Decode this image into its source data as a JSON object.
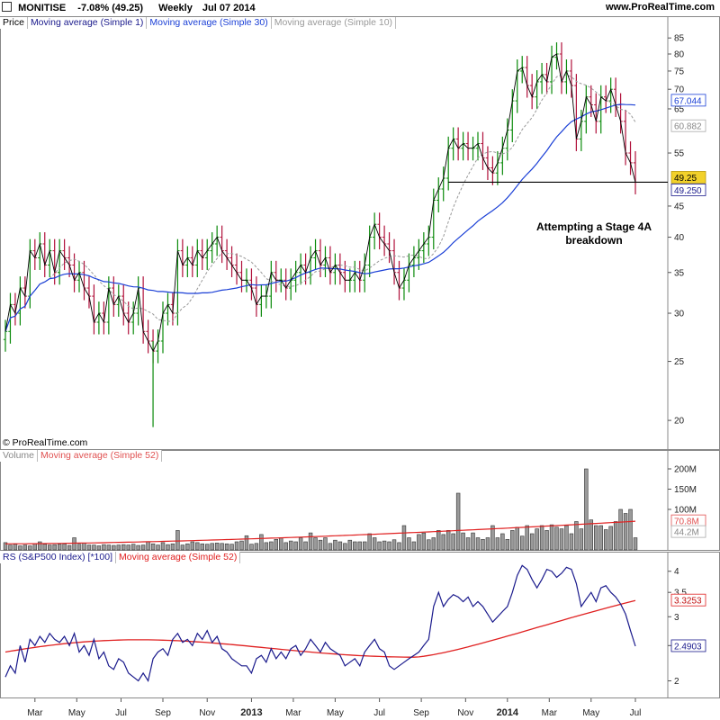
{
  "header": {
    "symbol": "MONITISE",
    "change": "-7.08% (49.25)",
    "period": "Weekly",
    "date": "Jul 07 2014",
    "site": "www.ProRealTime.com"
  },
  "copyright": "© ProRealTime.com",
  "annotation": {
    "line1": "Attempting a Stage 4A",
    "line2": "breakdown"
  },
  "colors": {
    "up": "#0a8a0a",
    "down": "#b0103a",
    "ma_price_1": "#000000",
    "ma_30": "#1a3fd6",
    "ma_10": "#999999",
    "volume_bar": "#9a9a9a",
    "ma52": "#e02020",
    "rs": "#1a1a8c",
    "tag_current_bg": "#f2d12a"
  },
  "chart_data": [
    {
      "type": "candlestick",
      "panel": "price",
      "legend": [
        "Price",
        "Moving average (Simple 1)",
        "Moving average (Simple 30)",
        "Moving average (Simple 10)"
      ],
      "y_scale": "log",
      "ylim": [
        18.5,
        88
      ],
      "yticks": [
        20,
        25,
        30,
        35,
        40,
        45,
        55,
        65,
        70,
        75,
        80,
        85
      ],
      "x_ticks": [
        {
          "label": "Mar",
          "week": 6,
          "bold": false
        },
        {
          "label": "May",
          "week": 14.5,
          "bold": false
        },
        {
          "label": "Jul",
          "week": 23.5,
          "bold": false
        },
        {
          "label": "Sep",
          "week": 32,
          "bold": false
        },
        {
          "label": "Nov",
          "week": 41,
          "bold": false
        },
        {
          "label": "2013",
          "week": 50,
          "bold": true
        },
        {
          "label": "Mar",
          "week": 58.5,
          "bold": false
        },
        {
          "label": "May",
          "week": 67,
          "bold": false
        },
        {
          "label": "Jul",
          "week": 76,
          "bold": false
        },
        {
          "label": "Sep",
          "week": 84.5,
          "bold": false
        },
        {
          "label": "Nov",
          "week": 93.5,
          "bold": false
        },
        {
          "label": "2014",
          "week": 102,
          "bold": true
        },
        {
          "label": "Mar",
          "week": 110.5,
          "bold": false
        },
        {
          "label": "May",
          "week": 119,
          "bold": false
        },
        {
          "label": "Jul",
          "week": 128,
          "bold": false
        }
      ],
      "close": [
        28,
        31,
        30,
        33,
        32,
        38,
        37,
        39,
        36,
        38,
        35,
        38,
        37,
        36,
        34,
        35,
        33,
        32,
        29,
        30,
        29,
        33,
        31,
        32,
        30,
        29,
        30,
        33,
        28,
        27,
        26,
        27,
        30,
        31,
        30,
        38,
        36,
        37,
        36,
        38,
        37,
        38,
        39,
        40,
        38,
        37,
        36,
        35,
        34,
        34,
        33,
        31,
        32,
        32,
        35,
        34,
        34,
        33,
        34,
        35,
        36,
        35,
        37,
        38,
        36,
        37,
        35,
        36,
        35,
        34,
        34,
        35,
        34,
        36,
        40,
        42,
        40,
        39,
        38,
        35,
        33,
        34,
        36,
        37,
        38,
        39,
        40,
        46,
        48,
        50,
        56,
        58,
        56,
        57,
        56,
        56,
        57,
        54,
        52,
        51,
        53,
        56,
        60,
        67,
        75,
        76,
        71,
        68,
        72,
        74,
        72,
        79,
        80,
        72,
        75,
        71,
        58,
        62,
        68,
        66,
        62,
        68,
        67,
        70,
        66,
        62,
        55,
        53,
        49.25
      ],
      "threshold_line": {
        "value": 49.25,
        "from_week": 90,
        "to_week": 129
      },
      "last_price_tags": [
        {
          "text": "67.044",
          "value": 67.044,
          "series": "ma_30"
        },
        {
          "text": "60.882",
          "value": 60.882,
          "series": "ma_10"
        },
        {
          "text": "49.25",
          "value": 49.25,
          "series": "price"
        },
        {
          "text": "49.250",
          "value": 49.25,
          "series": "ma_1"
        }
      ]
    },
    {
      "type": "bar",
      "panel": "volume",
      "legend": [
        "Volume",
        "Moving average (Simple 52)"
      ],
      "ylim": [
        0,
        240
      ],
      "unit": "M",
      "yticks": [
        {
          "value": 100,
          "label": "100M"
        },
        {
          "value": 150,
          "label": "150M"
        },
        {
          "value": 200,
          "label": "200M"
        }
      ],
      "values": [
        18,
        12,
        14,
        10,
        12,
        10,
        16,
        20,
        14,
        12,
        13,
        14,
        15,
        11,
        30,
        14,
        17,
        12,
        12,
        10,
        13,
        12,
        11,
        12,
        13,
        12,
        14,
        11,
        12,
        20,
        15,
        12,
        18,
        13,
        15,
        48,
        12,
        15,
        20,
        18,
        15,
        14,
        16,
        17,
        16,
        15,
        14,
        20,
        22,
        35,
        14,
        16,
        38,
        18,
        20,
        26,
        30,
        18,
        22,
        20,
        30,
        20,
        42,
        30,
        24,
        30,
        16,
        24,
        20,
        16,
        24,
        20,
        20,
        20,
        40,
        30,
        20,
        22,
        20,
        25,
        18,
        60,
        30,
        20,
        38,
        42,
        25,
        30,
        48,
        38,
        48,
        40,
        140,
        42,
        30,
        42,
        30,
        26,
        30,
        60,
        30,
        40,
        26,
        48,
        56,
        34,
        60,
        40,
        52,
        60,
        48,
        62,
        56,
        52,
        60,
        40,
        70,
        52,
        200,
        74,
        60,
        60,
        50,
        58,
        70,
        100,
        90,
        100,
        30
      ],
      "ma52_start": 15,
      "ma52_end": 70.8,
      "last_tags": [
        {
          "text": "70.8M",
          "value": 70.8
        },
        {
          "text": "44.2M",
          "value": 44.2
        }
      ]
    },
    {
      "type": "line",
      "panel": "rs",
      "legend": [
        "RS (S&P500 Index) [*100]",
        "Moving average (Simple 52)"
      ],
      "y_scale": "log",
      "ylim": [
        1.8,
        4.4
      ],
      "yticks": [
        2,
        2.5,
        3,
        3.5,
        4
      ],
      "values": [
        2.05,
        2.2,
        2.1,
        2.5,
        2.25,
        2.6,
        2.5,
        2.65,
        2.55,
        2.7,
        2.6,
        2.55,
        2.65,
        2.5,
        2.7,
        2.4,
        2.5,
        2.35,
        2.6,
        2.3,
        2.4,
        2.2,
        2.15,
        2.3,
        2.25,
        2.1,
        2.05,
        2.0,
        2.1,
        2.0,
        2.3,
        2.4,
        2.45,
        2.35,
        2.6,
        2.7,
        2.55,
        2.6,
        2.5,
        2.7,
        2.6,
        2.75,
        2.55,
        2.65,
        2.45,
        2.4,
        2.3,
        2.25,
        2.2,
        2.2,
        2.1,
        2.3,
        2.35,
        2.25,
        2.45,
        2.3,
        2.4,
        2.3,
        2.45,
        2.5,
        2.35,
        2.45,
        2.6,
        2.5,
        2.4,
        2.55,
        2.45,
        2.4,
        2.35,
        2.2,
        2.25,
        2.3,
        2.2,
        2.4,
        2.5,
        2.6,
        2.45,
        2.4,
        2.2,
        2.15,
        2.2,
        2.25,
        2.3,
        2.35,
        2.4,
        2.5,
        2.6,
        3.2,
        3.5,
        3.2,
        3.35,
        3.45,
        3.4,
        3.3,
        3.4,
        3.2,
        3.3,
        3.2,
        3.05,
        2.9,
        3.0,
        3.1,
        3.2,
        3.5,
        3.9,
        4.15,
        4.05,
        3.8,
        3.6,
        3.8,
        4.05,
        4.0,
        3.85,
        3.95,
        4.1,
        4.05,
        3.7,
        3.2,
        3.35,
        3.5,
        3.3,
        3.6,
        3.65,
        3.5,
        3.4,
        3.25,
        3.05,
        2.75,
        2.49
      ],
      "ma52_start": 2.35,
      "ma52_end": 3.3253,
      "last_tags": [
        {
          "text": "3.3253",
          "value": 3.3253,
          "series": "ma52"
        },
        {
          "text": "2.4903",
          "value": 2.4903,
          "series": "rs"
        }
      ]
    }
  ]
}
